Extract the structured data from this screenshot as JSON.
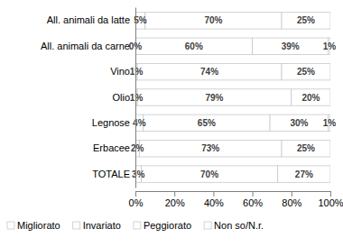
{
  "chart_data": {
    "type": "bar",
    "orientation": "horizontal",
    "stacked": true,
    "data_labels": true,
    "categories": [
      "All. animali da latte",
      "All. animali da carne",
      "Vino",
      "Olio",
      "Legnose",
      "Erbacee",
      "TOTALE"
    ],
    "series": [
      {
        "name": "Migliorato",
        "color": "#ffffff",
        "values": [
          5,
          0,
          1,
          1,
          4,
          2,
          3
        ],
        "value_labels": [
          "5%",
          "0%",
          "1%",
          "1%",
          "4%",
          "2%",
          "3%"
        ]
      },
      {
        "name": "Invariato",
        "color": "#ffffff",
        "values": [
          70,
          60,
          74,
          79,
          65,
          73,
          70
        ],
        "value_labels": [
          "70%",
          "60%",
          "74%",
          "79%",
          "65%",
          "73%",
          "70%"
        ]
      },
      {
        "name": "Peggiorato",
        "color": "#ffffff",
        "values": [
          25,
          39,
          25,
          20,
          30,
          25,
          27
        ],
        "value_labels": [
          "25%",
          "39%",
          "25%",
          "20%",
          "30%",
          "25%",
          "27%"
        ]
      },
      {
        "name": "Non so/N.r.",
        "color": "#ffffff",
        "values": [
          null,
          1,
          null,
          null,
          1,
          null,
          null
        ],
        "value_labels": [
          null,
          "1%",
          null,
          null,
          "1%",
          null,
          null
        ]
      }
    ],
    "xlim": [
      0,
      100
    ],
    "xticks": [
      {
        "value": 0,
        "label": "0%"
      },
      {
        "value": 20,
        "label": "20%"
      },
      {
        "value": 40,
        "label": "40%"
      },
      {
        "value": 60,
        "label": "60%"
      },
      {
        "value": 80,
        "label": "80%"
      },
      {
        "value": 100,
        "label": "100%"
      }
    ],
    "legend": "bottom"
  }
}
